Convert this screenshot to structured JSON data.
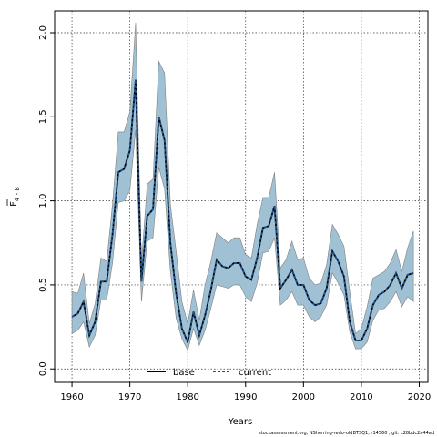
{
  "chart_data": {
    "type": "line",
    "title": "",
    "xlabel": "Years",
    "ylabel_main": "F",
    "ylabel_sub": "4 - 8",
    "xlim": [
      1957,
      2021.5
    ],
    "ylim": [
      -0.08,
      2.13
    ],
    "xticks": [
      1960,
      1970,
      1980,
      1990,
      2000,
      2010,
      2020
    ],
    "yticks": [
      0.0,
      0.5,
      1.0,
      1.5,
      2.0
    ],
    "ytick_labels": [
      "0.0",
      "0.5",
      "1.0",
      "1.5",
      "2.0"
    ],
    "grid": true,
    "legend_position": "bottom-center",
    "band_color": "#9fc1d3",
    "band_edge_color": "#808080",
    "series": [
      {
        "name": "base",
        "color": "#000000",
        "style": "solid",
        "x": [
          1960,
          1961,
          1962,
          1963,
          1964,
          1965,
          1966,
          1967,
          1968,
          1969,
          1970,
          1971,
          1972,
          1973,
          1974,
          1975,
          1976,
          1977,
          1978,
          1979,
          1980,
          1981,
          1982,
          1983,
          1984,
          1985,
          1986,
          1987,
          1988,
          1989,
          1990,
          1991,
          1992,
          1993,
          1994,
          1995,
          1996,
          1997,
          1998,
          1999,
          2000,
          2001,
          2002,
          2003,
          2004,
          2005,
          2006,
          2007,
          2008,
          2009,
          2010,
          2011,
          2012,
          2013,
          2014,
          2015,
          2016,
          2017,
          2018,
          2019
        ],
        "y": [
          0.31,
          0.33,
          0.4,
          0.2,
          0.28,
          0.52,
          0.52,
          0.8,
          1.17,
          1.19,
          1.3,
          1.72,
          0.52,
          0.91,
          0.95,
          1.5,
          1.36,
          0.75,
          0.45,
          0.24,
          0.16,
          0.34,
          0.2,
          0.32,
          0.47,
          0.65,
          0.61,
          0.6,
          0.63,
          0.63,
          0.55,
          0.53,
          0.66,
          0.84,
          0.85,
          0.97,
          0.48,
          0.53,
          0.59,
          0.5,
          0.5,
          0.41,
          0.38,
          0.39,
          0.48,
          0.7,
          0.64,
          0.55,
          0.28,
          0.17,
          0.17,
          0.24,
          0.38,
          0.44,
          0.46,
          0.5,
          0.57,
          0.48,
          0.56,
          0.57
        ]
      },
      {
        "name": "current",
        "color": "#1f4e8c",
        "style": "dashed",
        "x": [
          1960,
          1961,
          1962,
          1963,
          1964,
          1965,
          1966,
          1967,
          1968,
          1969,
          1970,
          1971,
          1972,
          1973,
          1974,
          1975,
          1976,
          1977,
          1978,
          1979,
          1980,
          1981,
          1982,
          1983,
          1984,
          1985,
          1986,
          1987,
          1988,
          1989,
          1990,
          1991,
          1992,
          1993,
          1994,
          1995,
          1996,
          1997,
          1998,
          1999,
          2000,
          2001,
          2002,
          2003,
          2004,
          2005,
          2006,
          2007,
          2008,
          2009,
          2010,
          2011,
          2012,
          2013,
          2014,
          2015,
          2016,
          2017,
          2018,
          2019
        ],
        "y": [
          0.31,
          0.33,
          0.4,
          0.2,
          0.28,
          0.52,
          0.52,
          0.8,
          1.17,
          1.19,
          1.3,
          1.72,
          0.52,
          0.91,
          0.95,
          1.5,
          1.36,
          0.75,
          0.45,
          0.24,
          0.16,
          0.34,
          0.2,
          0.32,
          0.47,
          0.65,
          0.61,
          0.6,
          0.63,
          0.63,
          0.55,
          0.53,
          0.66,
          0.84,
          0.85,
          0.97,
          0.48,
          0.53,
          0.59,
          0.5,
          0.5,
          0.41,
          0.38,
          0.39,
          0.48,
          0.7,
          0.64,
          0.55,
          0.28,
          0.17,
          0.17,
          0.24,
          0.38,
          0.44,
          0.46,
          0.5,
          0.57,
          0.48,
          0.56,
          0.57
        ]
      }
    ],
    "band": {
      "x": [
        1960,
        1961,
        1962,
        1963,
        1964,
        1965,
        1966,
        1967,
        1968,
        1969,
        1970,
        1971,
        1972,
        1973,
        1974,
        1975,
        1976,
        1977,
        1978,
        1979,
        1980,
        1981,
        1982,
        1983,
        1984,
        1985,
        1986,
        1987,
        1988,
        1989,
        1990,
        1991,
        1992,
        1993,
        1994,
        1995,
        1996,
        1997,
        1998,
        1999,
        2000,
        2001,
        2002,
        2003,
        2004,
        2005,
        2006,
        2007,
        2008,
        2009,
        2010,
        2011,
        2012,
        2013,
        2014,
        2015,
        2016,
        2017,
        2018,
        2019
      ],
      "upper": [
        0.46,
        0.45,
        0.57,
        0.27,
        0.39,
        0.66,
        0.64,
        0.98,
        1.41,
        1.41,
        1.53,
        2.06,
        0.63,
        1.1,
        1.13,
        1.83,
        1.76,
        0.98,
        0.7,
        0.4,
        0.27,
        0.47,
        0.29,
        0.5,
        0.64,
        0.81,
        0.78,
        0.75,
        0.78,
        0.78,
        0.68,
        0.66,
        0.86,
        1.02,
        1.02,
        1.17,
        0.6,
        0.65,
        0.76,
        0.65,
        0.66,
        0.54,
        0.5,
        0.51,
        0.62,
        0.86,
        0.8,
        0.73,
        0.46,
        0.21,
        0.24,
        0.37,
        0.54,
        0.56,
        0.58,
        0.63,
        0.71,
        0.58,
        0.72,
        0.82
      ],
      "lower": [
        0.21,
        0.23,
        0.28,
        0.13,
        0.2,
        0.41,
        0.41,
        0.63,
        0.99,
        1.0,
        1.06,
        1.42,
        0.4,
        0.76,
        0.78,
        1.2,
        1.07,
        0.58,
        0.3,
        0.18,
        0.11,
        0.24,
        0.14,
        0.23,
        0.36,
        0.5,
        0.49,
        0.48,
        0.5,
        0.5,
        0.43,
        0.4,
        0.51,
        0.69,
        0.7,
        0.78,
        0.38,
        0.41,
        0.46,
        0.38,
        0.38,
        0.31,
        0.28,
        0.31,
        0.38,
        0.57,
        0.51,
        0.44,
        0.22,
        0.12,
        0.12,
        0.16,
        0.29,
        0.35,
        0.36,
        0.4,
        0.46,
        0.37,
        0.43,
        0.4
      ]
    }
  },
  "footer_text": "stockassessment.org, NSherring-redo-oldBTSQ1, r14560 , git: c28bdc2a44ad"
}
